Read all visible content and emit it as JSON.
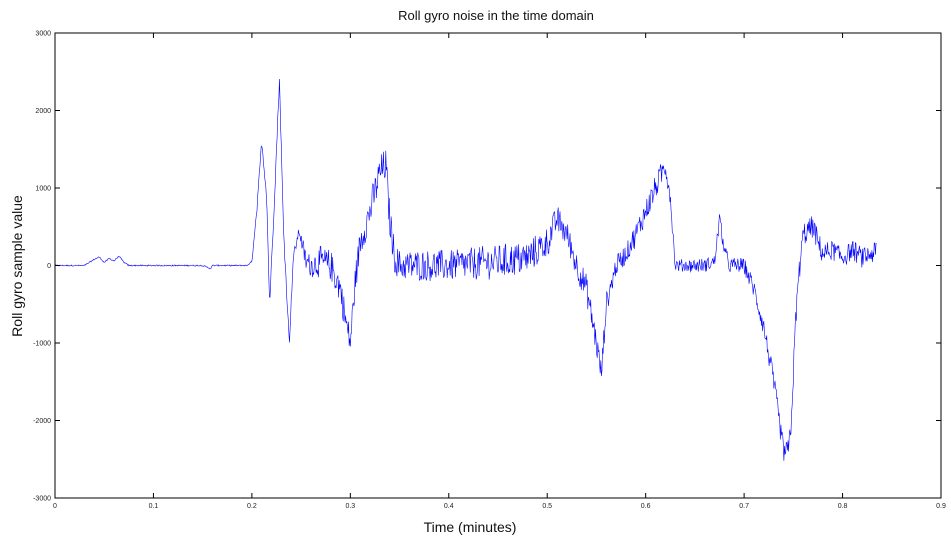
{
  "chart_data": {
    "type": "line",
    "title": "Roll gyro noise in the time domain",
    "xlabel": "Time (minutes)",
    "ylabel": "Roll gyro sample value",
    "xlim": [
      0,
      0.9
    ],
    "ylim": [
      -3000,
      3000
    ],
    "x_ticks": [
      "0",
      "0.1",
      "0.2",
      "0.3",
      "0.4",
      "0.5",
      "0.6",
      "0.7",
      "0.8",
      "0.9"
    ],
    "y_ticks": [
      "3000",
      "2000",
      "1000",
      "0",
      "-1000",
      "-2000",
      "-3000"
    ],
    "x_tick_values": [
      0,
      0.1,
      0.2,
      0.3,
      0.4,
      0.5,
      0.6,
      0.7,
      0.8,
      0.9
    ],
    "y_tick_values": [
      3000,
      2000,
      1000,
      0,
      -1000,
      -2000,
      -3000
    ],
    "grid": false,
    "legend": "none",
    "series": [
      {
        "color": "#0000ff",
        "x": [
          0,
          0.03,
          0.04,
          0.045,
          0.05,
          0.055,
          0.06,
          0.065,
          0.07,
          0.075,
          0.15,
          0.158,
          0.16,
          0.195,
          0.2,
          0.205,
          0.21,
          0.215,
          0.218,
          0.222,
          0.228,
          0.232,
          0.238,
          0.242,
          0.248,
          0.255,
          0.26,
          0.27,
          0.28,
          0.29,
          0.295,
          0.3,
          0.305,
          0.31,
          0.32,
          0.33,
          0.336,
          0.34,
          0.345,
          0.35,
          0.4,
          0.45,
          0.48,
          0.5,
          0.51,
          0.52,
          0.53,
          0.54,
          0.55,
          0.555,
          0.56,
          0.57,
          0.58,
          0.59,
          0.6,
          0.61,
          0.62,
          0.625,
          0.63,
          0.64,
          0.66,
          0.67,
          0.675,
          0.68,
          0.685,
          0.69,
          0.7,
          0.71,
          0.72,
          0.73,
          0.74,
          0.745,
          0.748,
          0.752,
          0.755,
          0.76,
          0.77,
          0.775,
          0.78,
          0.79,
          0.8,
          0.81,
          0.82,
          0.83,
          0.835
        ],
        "y": [
          0,
          0,
          80,
          110,
          40,
          90,
          60,
          120,
          40,
          0,
          0,
          -40,
          0,
          0,
          50,
          700,
          1600,
          900,
          -500,
          600,
          2400,
          500,
          -1000,
          100,
          450,
          50,
          0,
          50,
          0,
          -300,
          -700,
          -1000,
          -200,
          300,
          700,
          1200,
          1300,
          600,
          100,
          0,
          0,
          50,
          100,
          300,
          600,
          400,
          0,
          -300,
          -1000,
          -1400,
          -500,
          0,
          150,
          400,
          700,
          1000,
          1300,
          900,
          0,
          0,
          0,
          50,
          600,
          200,
          0,
          0,
          0,
          -300,
          -800,
          -1500,
          -2400,
          -2400,
          -2000,
          -800,
          -200,
          400,
          500,
          300,
          150,
          200,
          100,
          200,
          100,
          150,
          200
        ],
        "noise": [
          0,
          0,
          0,
          0,
          0,
          0,
          0,
          0,
          0,
          0,
          0,
          0,
          0,
          0,
          0,
          40,
          60,
          60,
          60,
          60,
          60,
          60,
          60,
          60,
          60,
          150,
          150,
          200,
          200,
          200,
          200,
          200,
          200,
          200,
          220,
          220,
          220,
          220,
          200,
          200,
          200,
          220,
          220,
          200,
          180,
          180,
          180,
          180,
          180,
          150,
          150,
          130,
          130,
          150,
          160,
          160,
          160,
          120,
          80,
          80,
          90,
          90,
          100,
          90,
          90,
          100,
          100,
          120,
          130,
          140,
          150,
          150,
          150,
          150,
          150,
          150,
          150,
          150,
          130,
          130,
          130,
          130,
          130,
          130,
          130
        ]
      }
    ]
  }
}
